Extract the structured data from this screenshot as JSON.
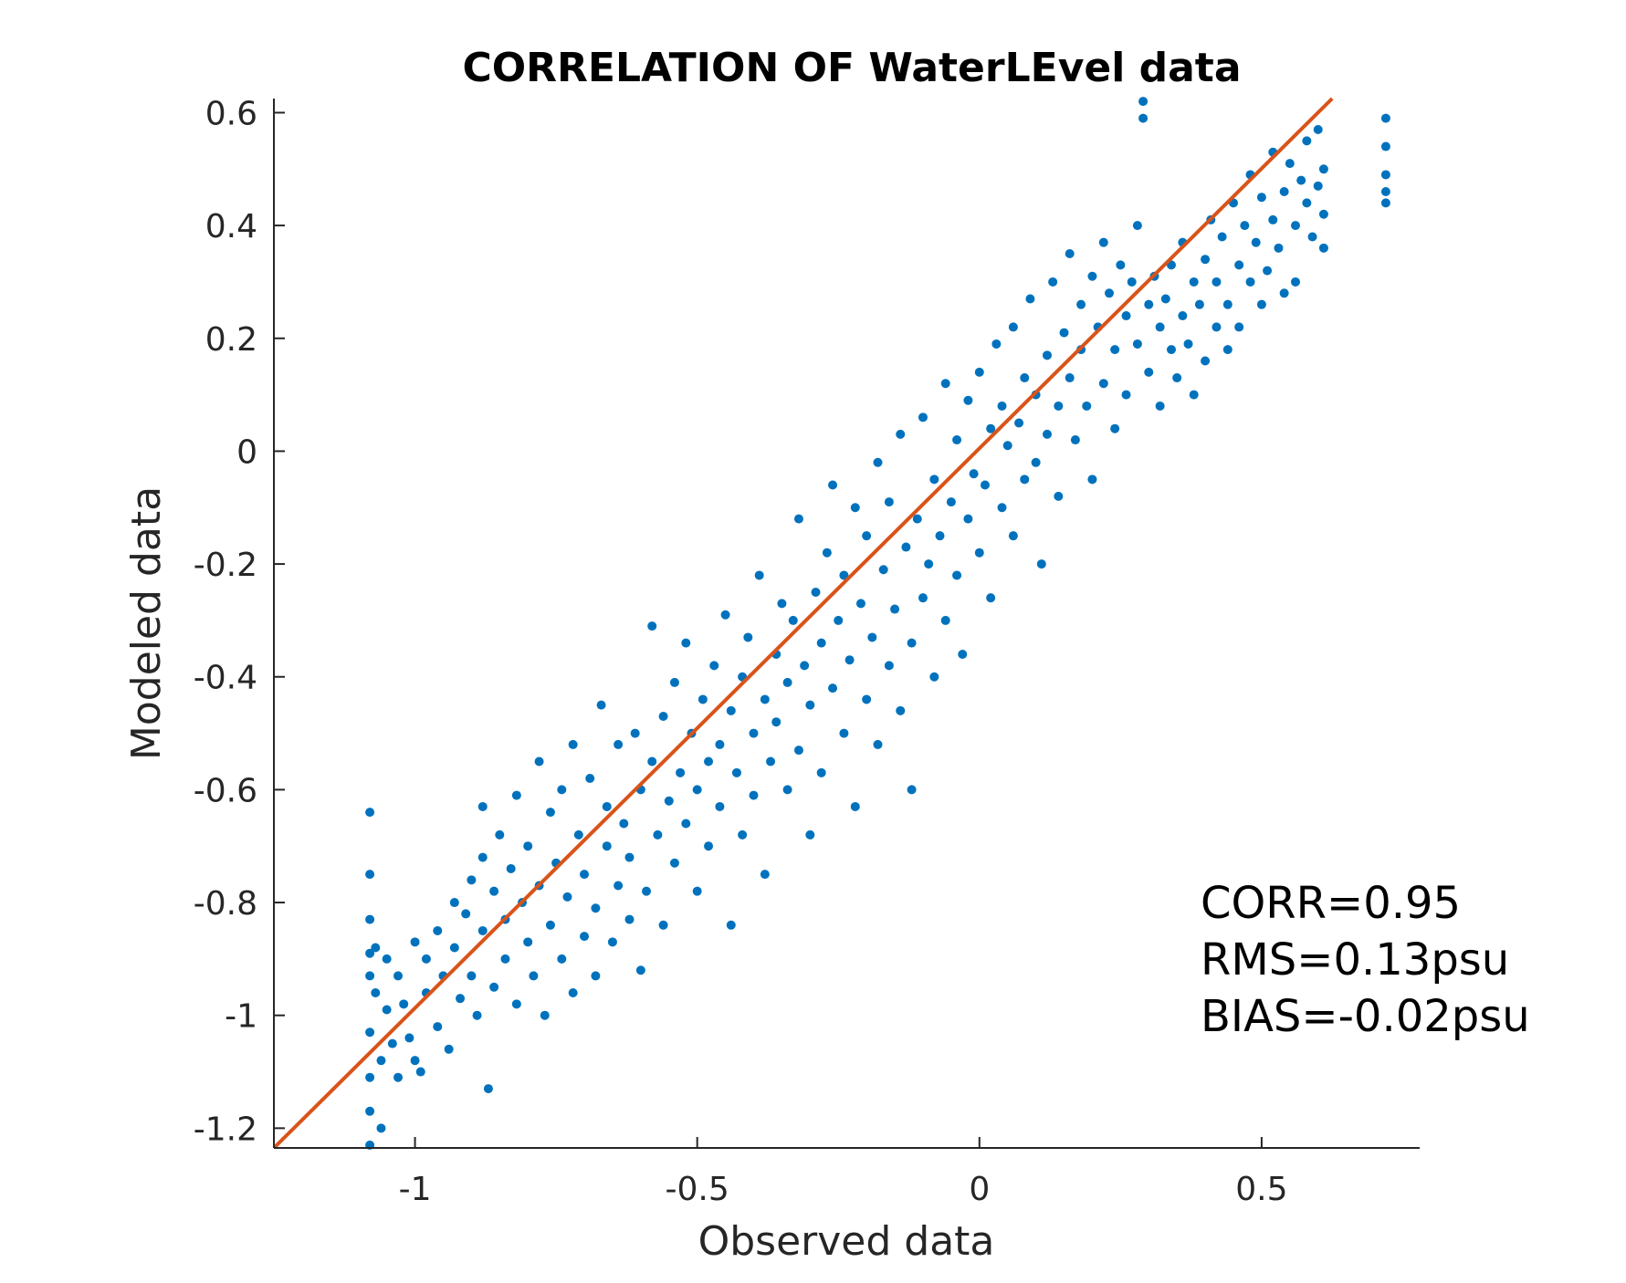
{
  "chart_data": {
    "type": "scatter",
    "title": "CORRELATION OF WaterLEvel data",
    "xlabel": "Observed data",
    "ylabel": "Modeled data",
    "xlim": [
      -1.25,
      0.78
    ],
    "ylim": [
      -1.235,
      0.625
    ],
    "xticks": [
      -1,
      -0.5,
      0,
      0.5
    ],
    "xtick_labels": [
      "-1",
      "-0.5",
      "0",
      "0.5"
    ],
    "yticks": [
      0.6,
      0.4,
      0.2,
      0,
      -0.2,
      -0.4,
      -0.6,
      -0.8,
      -1,
      -1.2
    ],
    "ytick_labels": [
      "0.6",
      "0.4",
      "0.2",
      "0",
      "-0.2",
      "-0.4",
      "-0.6",
      "-0.8",
      "-1",
      "-1.2"
    ],
    "grid": false,
    "box": "left-bottom",
    "stats_text": [
      "CORR=0.95",
      "RMS=0.13psu",
      "BIAS=-0.02psu"
    ],
    "series": [
      {
        "kind": "scatter",
        "color": "#0072BD",
        "points": [
          [
            -1.08,
            -0.64
          ],
          [
            -1.08,
            -0.75
          ],
          [
            -1.08,
            -0.83
          ],
          [
            -1.08,
            -0.89
          ],
          [
            -1.08,
            -0.93
          ],
          [
            -1.08,
            -1.03
          ],
          [
            -1.08,
            -1.11
          ],
          [
            -1.08,
            -1.17
          ],
          [
            -1.08,
            -1.23
          ],
          [
            -1.07,
            -0.88
          ],
          [
            -1.07,
            -0.96
          ],
          [
            -1.06,
            -1.08
          ],
          [
            -1.06,
            -1.2
          ],
          [
            -1.05,
            -0.9
          ],
          [
            -1.05,
            -0.99
          ],
          [
            -1.04,
            -1.05
          ],
          [
            -1.03,
            -0.93
          ],
          [
            -1.03,
            -1.11
          ],
          [
            -1.02,
            -0.98
          ],
          [
            -1.01,
            -1.04
          ],
          [
            -1.0,
            -0.87
          ],
          [
            -1.0,
            -1.08
          ],
          [
            -0.99,
            -1.1
          ],
          [
            -0.98,
            -0.9
          ],
          [
            -0.98,
            -0.96
          ],
          [
            -0.96,
            -1.02
          ],
          [
            -0.96,
            -0.85
          ],
          [
            -0.95,
            -0.93
          ],
          [
            -0.94,
            -1.06
          ],
          [
            -0.93,
            -0.8
          ],
          [
            -0.93,
            -0.88
          ],
          [
            -0.92,
            -0.97
          ],
          [
            -0.91,
            -0.82
          ],
          [
            -0.9,
            -0.76
          ],
          [
            -0.9,
            -0.93
          ],
          [
            -0.89,
            -1.0
          ],
          [
            -0.88,
            -0.63
          ],
          [
            -0.88,
            -0.72
          ],
          [
            -0.88,
            -0.85
          ],
          [
            -0.87,
            -1.13
          ],
          [
            -0.86,
            -0.78
          ],
          [
            -0.86,
            -0.95
          ],
          [
            -0.85,
            -0.68
          ],
          [
            -0.84,
            -0.83
          ],
          [
            -0.84,
            -0.9
          ],
          [
            -0.83,
            -0.74
          ],
          [
            -0.82,
            -0.61
          ],
          [
            -0.82,
            -0.98
          ],
          [
            -0.81,
            -0.8
          ],
          [
            -0.8,
            -0.87
          ],
          [
            -0.8,
            -0.7
          ],
          [
            -0.79,
            -0.93
          ],
          [
            -0.78,
            -0.55
          ],
          [
            -0.78,
            -0.77
          ],
          [
            -0.77,
            -1.0
          ],
          [
            -0.76,
            -0.64
          ],
          [
            -0.76,
            -0.84
          ],
          [
            -0.75,
            -0.73
          ],
          [
            -0.74,
            -0.9
          ],
          [
            -0.74,
            -0.6
          ],
          [
            -0.73,
            -0.79
          ],
          [
            -0.72,
            -0.52
          ],
          [
            -0.72,
            -0.96
          ],
          [
            -0.71,
            -0.68
          ],
          [
            -0.7,
            -0.86
          ],
          [
            -0.7,
            -0.75
          ],
          [
            -0.69,
            -0.58
          ],
          [
            -0.68,
            -0.81
          ],
          [
            -0.68,
            -0.93
          ],
          [
            -0.67,
            -0.45
          ],
          [
            -0.66,
            -0.7
          ],
          [
            -0.66,
            -0.63
          ],
          [
            -0.65,
            -0.87
          ],
          [
            -0.64,
            -0.77
          ],
          [
            -0.64,
            -0.52
          ],
          [
            -0.63,
            -0.66
          ],
          [
            -0.62,
            -0.83
          ],
          [
            -0.62,
            -0.72
          ],
          [
            -0.61,
            -0.5
          ],
          [
            -0.6,
            -0.6
          ],
          [
            -0.6,
            -0.92
          ],
          [
            -0.59,
            -0.78
          ],
          [
            -0.58,
            -0.55
          ],
          [
            -0.58,
            -0.31
          ],
          [
            -0.57,
            -0.68
          ],
          [
            -0.56,
            -0.47
          ],
          [
            -0.56,
            -0.84
          ],
          [
            -0.55,
            -0.62
          ],
          [
            -0.54,
            -0.73
          ],
          [
            -0.54,
            -0.41
          ],
          [
            -0.53,
            -0.57
          ],
          [
            -0.52,
            -0.66
          ],
          [
            -0.52,
            -0.34
          ],
          [
            -0.51,
            -0.5
          ],
          [
            -0.5,
            -0.78
          ],
          [
            -0.5,
            -0.6
          ],
          [
            -0.49,
            -0.44
          ],
          [
            -0.48,
            -0.55
          ],
          [
            -0.48,
            -0.7
          ],
          [
            -0.47,
            -0.38
          ],
          [
            -0.46,
            -0.52
          ],
          [
            -0.46,
            -0.63
          ],
          [
            -0.45,
            -0.29
          ],
          [
            -0.44,
            -0.46
          ],
          [
            -0.44,
            -0.84
          ],
          [
            -0.43,
            -0.57
          ],
          [
            -0.42,
            -0.4
          ],
          [
            -0.42,
            -0.68
          ],
          [
            -0.41,
            -0.33
          ],
          [
            -0.4,
            -0.5
          ],
          [
            -0.4,
            -0.61
          ],
          [
            -0.39,
            -0.22
          ],
          [
            -0.38,
            -0.44
          ],
          [
            -0.38,
            -0.75
          ],
          [
            -0.37,
            -0.55
          ],
          [
            -0.36,
            -0.36
          ],
          [
            -0.36,
            -0.48
          ],
          [
            -0.35,
            -0.27
          ],
          [
            -0.34,
            -0.6
          ],
          [
            -0.34,
            -0.41
          ],
          [
            -0.33,
            -0.3
          ],
          [
            -0.32,
            -0.53
          ],
          [
            -0.32,
            -0.12
          ],
          [
            -0.31,
            -0.38
          ],
          [
            -0.3,
            -0.68
          ],
          [
            -0.3,
            -0.45
          ],
          [
            -0.29,
            -0.25
          ],
          [
            -0.28,
            -0.34
          ],
          [
            -0.28,
            -0.57
          ],
          [
            -0.27,
            -0.18
          ],
          [
            -0.26,
            -0.42
          ],
          [
            -0.26,
            -0.06
          ],
          [
            -0.25,
            -0.3
          ],
          [
            -0.24,
            -0.5
          ],
          [
            -0.24,
            -0.22
          ],
          [
            -0.23,
            -0.37
          ],
          [
            -0.22,
            -0.1
          ],
          [
            -0.22,
            -0.63
          ],
          [
            -0.21,
            -0.27
          ],
          [
            -0.2,
            -0.44
          ],
          [
            -0.2,
            -0.15
          ],
          [
            -0.19,
            -0.33
          ],
          [
            -0.18,
            -0.02
          ],
          [
            -0.18,
            -0.52
          ],
          [
            -0.17,
            -0.21
          ],
          [
            -0.16,
            -0.38
          ],
          [
            -0.16,
            -0.09
          ],
          [
            -0.15,
            -0.28
          ],
          [
            -0.14,
            -0.46
          ],
          [
            -0.14,
            0.03
          ],
          [
            -0.13,
            -0.17
          ],
          [
            -0.12,
            -0.34
          ],
          [
            -0.12,
            -0.6
          ],
          [
            -0.11,
            -0.12
          ],
          [
            -0.1,
            -0.26
          ],
          [
            -0.1,
            0.06
          ],
          [
            -0.09,
            -0.2
          ],
          [
            -0.08,
            -0.4
          ],
          [
            -0.08,
            -0.05
          ],
          [
            -0.07,
            -0.15
          ],
          [
            -0.06,
            -0.3
          ],
          [
            -0.06,
            0.12
          ],
          [
            -0.05,
            -0.09
          ],
          [
            -0.04,
            -0.22
          ],
          [
            -0.04,
            0.02
          ],
          [
            -0.03,
            -0.36
          ],
          [
            -0.02,
            -0.12
          ],
          [
            -0.02,
            0.09
          ],
          [
            -0.01,
            -0.04
          ],
          [
            0.0,
            -0.18
          ],
          [
            0.0,
            0.14
          ],
          [
            0.01,
            -0.06
          ],
          [
            0.02,
            0.04
          ],
          [
            0.02,
            -0.26
          ],
          [
            0.03,
            0.19
          ],
          [
            0.04,
            -0.1
          ],
          [
            0.04,
            0.08
          ],
          [
            0.05,
            0.01
          ],
          [
            0.06,
            -0.15
          ],
          [
            0.06,
            0.22
          ],
          [
            0.07,
            0.05
          ],
          [
            0.08,
            -0.05
          ],
          [
            0.08,
            0.13
          ],
          [
            0.09,
            0.27
          ],
          [
            0.1,
            -0.02
          ],
          [
            0.1,
            0.1
          ],
          [
            0.11,
            -0.2
          ],
          [
            0.12,
            0.17
          ],
          [
            0.12,
            0.03
          ],
          [
            0.13,
            0.3
          ],
          [
            0.14,
            0.08
          ],
          [
            0.14,
            -0.08
          ],
          [
            0.15,
            0.21
          ],
          [
            0.16,
            0.13
          ],
          [
            0.16,
            0.35
          ],
          [
            0.17,
            0.02
          ],
          [
            0.18,
            0.26
          ],
          [
            0.18,
            0.18
          ],
          [
            0.19,
            0.08
          ],
          [
            0.2,
            0.31
          ],
          [
            0.2,
            -0.05
          ],
          [
            0.21,
            0.22
          ],
          [
            0.22,
            0.12
          ],
          [
            0.22,
            0.37
          ],
          [
            0.23,
            0.28
          ],
          [
            0.24,
            0.18
          ],
          [
            0.24,
            0.04
          ],
          [
            0.25,
            0.33
          ],
          [
            0.26,
            0.24
          ],
          [
            0.26,
            0.1
          ],
          [
            0.27,
            0.3
          ],
          [
            0.28,
            0.19
          ],
          [
            0.28,
            0.4
          ],
          [
            0.29,
            0.59
          ],
          [
            0.29,
            0.62
          ],
          [
            0.3,
            0.26
          ],
          [
            0.3,
            0.14
          ],
          [
            0.31,
            0.31
          ],
          [
            0.32,
            0.22
          ],
          [
            0.32,
            0.08
          ],
          [
            0.33,
            0.27
          ],
          [
            0.34,
            0.18
          ],
          [
            0.34,
            0.33
          ],
          [
            0.35,
            0.13
          ],
          [
            0.36,
            0.24
          ],
          [
            0.36,
            0.37
          ],
          [
            0.37,
            0.19
          ],
          [
            0.38,
            0.3
          ],
          [
            0.38,
            0.1
          ],
          [
            0.39,
            0.26
          ],
          [
            0.4,
            0.34
          ],
          [
            0.4,
            0.16
          ],
          [
            0.41,
            0.41
          ],
          [
            0.42,
            0.22
          ],
          [
            0.42,
            0.3
          ],
          [
            0.43,
            0.38
          ],
          [
            0.44,
            0.26
          ],
          [
            0.44,
            0.18
          ],
          [
            0.45,
            0.44
          ],
          [
            0.46,
            0.33
          ],
          [
            0.46,
            0.22
          ],
          [
            0.47,
            0.4
          ],
          [
            0.48,
            0.3
          ],
          [
            0.48,
            0.49
          ],
          [
            0.49,
            0.37
          ],
          [
            0.5,
            0.26
          ],
          [
            0.5,
            0.45
          ],
          [
            0.51,
            0.32
          ],
          [
            0.52,
            0.41
          ],
          [
            0.52,
            0.53
          ],
          [
            0.53,
            0.36
          ],
          [
            0.54,
            0.28
          ],
          [
            0.54,
            0.46
          ],
          [
            0.55,
            0.51
          ],
          [
            0.56,
            0.4
          ],
          [
            0.56,
            0.3
          ],
          [
            0.57,
            0.48
          ],
          [
            0.58,
            0.44
          ],
          [
            0.58,
            0.55
          ],
          [
            0.59,
            0.38
          ],
          [
            0.6,
            0.47
          ],
          [
            0.6,
            0.57
          ],
          [
            0.61,
            0.42
          ],
          [
            0.61,
            0.5
          ],
          [
            0.61,
            0.36
          ],
          [
            0.72,
            0.59
          ],
          [
            0.72,
            0.54
          ],
          [
            0.72,
            0.49
          ],
          [
            0.72,
            0.46
          ],
          [
            0.72,
            0.44
          ]
        ]
      },
      {
        "kind": "line",
        "color": "#D95319",
        "points": [
          [
            -1.25,
            -1.235
          ],
          [
            0.625,
            0.625
          ]
        ]
      }
    ]
  }
}
